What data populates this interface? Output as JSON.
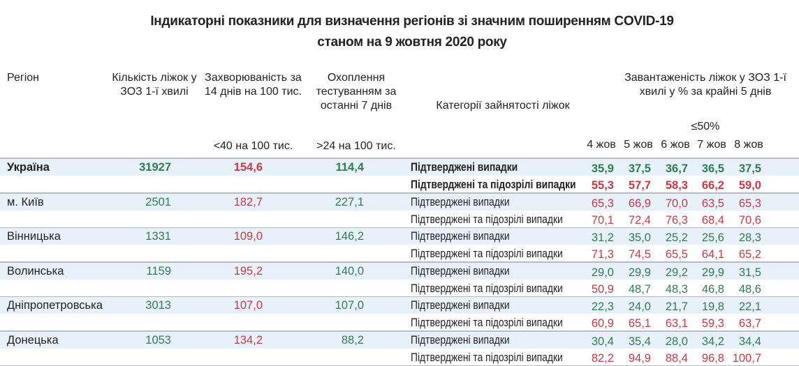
{
  "title": {
    "line1": "Індикаторні показники для визначення регіонів зі значним поширенням COVID-19",
    "line2": "станом на 9 жовтня 2020 року"
  },
  "headers": {
    "region": "Регіон",
    "beds": "Кількість ліжок у ЗОЗ 1-ї хвилі",
    "incidence": "Захворюваність за 14 днів на 100 тис.",
    "incidence_threshold": "<40 на 100 тис.",
    "testing": "Охоплення тестуванням за останні 7 днів",
    "testing_threshold": ">24 на 100 тис.",
    "category": "Категорії зайнятості ліжок",
    "occupancy": "Завантаженість ліжок у ЗОЗ 1-ї хвилі у % за крайні 5 днів",
    "occupancy_threshold": "≤50%",
    "days": [
      "4 жов",
      "5 жов",
      "6 жов",
      "7 жов",
      "8 жов"
    ]
  },
  "colors": {
    "green": "#2f7d50",
    "red": "#c63a47",
    "row_bg": "#e8f1f9"
  },
  "categories": {
    "confirmed": "Підтверджені випадки",
    "confirmed_suspected": "Підтверджені та підозрілі випадки"
  },
  "rows": [
    {
      "region": "Україна",
      "bold": true,
      "beds": "31927",
      "incidence": "154,6",
      "testing": "114,4",
      "confirmed": [
        "35,9",
        "37,5",
        "36,7",
        "36,5",
        "37,5"
      ],
      "suspected": [
        "55,3",
        "57,7",
        "58,3",
        "66,2",
        "59,0"
      ]
    },
    {
      "region": "м. Київ",
      "beds": "2501",
      "incidence": "182,7",
      "testing": "227,1",
      "confirmed": [
        "65,3",
        "66,9",
        "70,0",
        "63,5",
        "65,3"
      ],
      "suspected": [
        "70,1",
        "72,4",
        "76,3",
        "68,4",
        "70,6"
      ]
    },
    {
      "region": "Вінницька",
      "beds": "1331",
      "incidence": "109,0",
      "testing": "146,2",
      "confirmed": [
        "31,2",
        "35,0",
        "25,2",
        "25,6",
        "28,3"
      ],
      "suspected": [
        "71,3",
        "74,5",
        "65,5",
        "64,1",
        "65,2"
      ]
    },
    {
      "region": "Волинська",
      "beds": "1159",
      "incidence": "195,2",
      "testing": "140,0",
      "confirmed": [
        "29,0",
        "29,9",
        "29,2",
        "29,9",
        "31,5"
      ],
      "suspected": [
        "50,9",
        "48,7",
        "48,3",
        "46,8",
        "48,6"
      ]
    },
    {
      "region": "Дніпропетровська",
      "beds": "3013",
      "incidence": "107,0",
      "testing": "107,0",
      "confirmed": [
        "22,3",
        "24,0",
        "21,7",
        "19,8",
        "22,1"
      ],
      "suspected": [
        "60,9",
        "65,1",
        "63,1",
        "59,3",
        "63,7"
      ]
    },
    {
      "region": "Донецька",
      "beds": "1053",
      "incidence": "134,2",
      "testing": "88,2",
      "confirmed": [
        "30,4",
        "35,4",
        "28,0",
        "34,2",
        "34,4"
      ],
      "suspected": [
        "82,2",
        "94,9",
        "88,4",
        "96,8",
        "100,7"
      ]
    }
  ]
}
